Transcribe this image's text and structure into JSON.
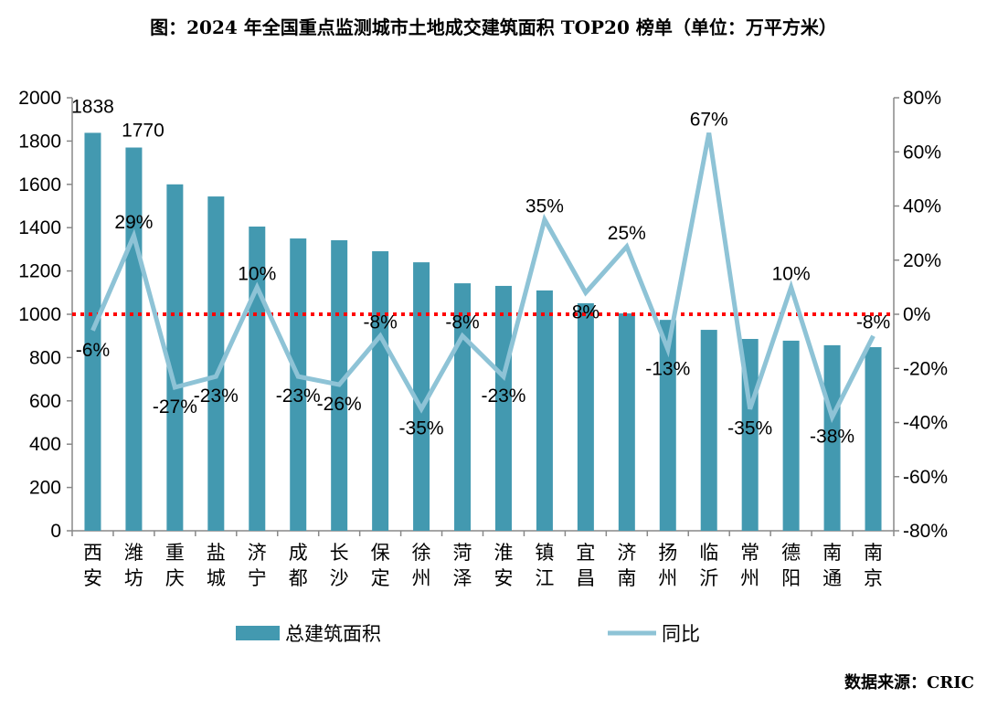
{
  "title": "图：2024 年全国重点监测城市土地成交建筑面积 TOP20 榜单（单位：万平方米）",
  "source": "数据来源：CRIC",
  "chart_data": {
    "type": "bar+line",
    "categories": [
      "西安",
      "潍坊",
      "重庆",
      "盐城",
      "济宁",
      "成都",
      "长沙",
      "保定",
      "徐州",
      "菏泽",
      "淮安",
      "镇江",
      "宜昌",
      "济南",
      "扬州",
      "临沂",
      "常州",
      "德阳",
      "南通",
      "南京"
    ],
    "series": [
      {
        "name": "总建筑面积",
        "type": "bar",
        "axis": "left",
        "color": "#4399b0",
        "values": [
          1838,
          1770,
          1600,
          1544,
          1405,
          1350,
          1342,
          1291,
          1240,
          1143,
          1131,
          1110,
          1051,
          1004,
          974,
          928,
          886,
          878,
          857,
          848
        ],
        "labels": [
          "1838",
          "1770",
          "",
          "",
          "",
          "",
          "",
          "",
          "",
          "",
          "",
          "",
          "",
          "",
          "",
          "",
          "",
          "",
          "",
          ""
        ]
      },
      {
        "name": "同比",
        "type": "line",
        "axis": "right",
        "color": "#8ec3d6",
        "values": [
          -6,
          29,
          -27,
          -23,
          10,
          -23,
          -26,
          -8,
          -35,
          -8,
          -23,
          35,
          8,
          25,
          -13,
          67,
          -35,
          10,
          -38,
          -8
        ],
        "labels": [
          "-6%",
          "29%",
          "-27%",
          "-23%",
          "10%",
          "-23%",
          "-26%",
          "-8%",
          "-35%",
          "-8%",
          "-23%",
          "35%",
          "8%",
          "25%",
          "-13%",
          "67%",
          "-35%",
          "10%",
          "-38%",
          "-8%"
        ]
      }
    ],
    "y_left": {
      "range": [
        0,
        2000
      ],
      "ticks": [
        "0",
        "200",
        "400",
        "600",
        "800",
        "1000",
        "1200",
        "1400",
        "1600",
        "1800",
        "2000"
      ]
    },
    "y_right": {
      "range": [
        -80,
        80
      ],
      "ticks": [
        "-80%",
        "-60%",
        "-40%",
        "-20%",
        "0%",
        "20%",
        "40%",
        "60%",
        "80%"
      ]
    },
    "reference_line": {
      "value_right": 0,
      "color": "#ff0000",
      "style": "dotted"
    },
    "legend": {
      "position": "bottom",
      "items": [
        "总建筑面积",
        "同比"
      ]
    },
    "grid": false
  }
}
